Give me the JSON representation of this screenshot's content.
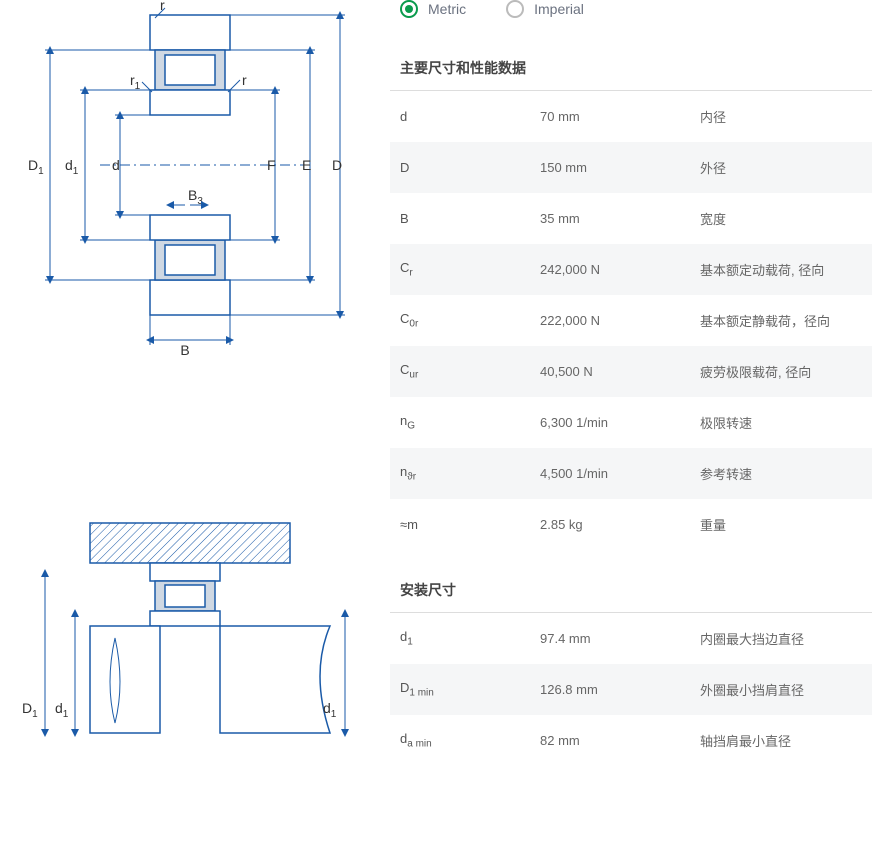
{
  "units": {
    "metric_label": "Metric",
    "imperial_label": "Imperial",
    "selected": "metric"
  },
  "diagram_labels": {
    "top": {
      "D": "D",
      "E": "E",
      "F": "F",
      "D1": "D",
      "D1_sub": "1",
      "d1": "d",
      "d1_sub": "1",
      "d": "d",
      "r_top": "r",
      "r_right": "r",
      "r1": "r",
      "r1_sub": "1",
      "B": "B",
      "B3": "B",
      "B3_sub": "3"
    },
    "bottom": {
      "D1": "D",
      "D1_sub": "1",
      "d1_left": "d",
      "d1_left_sub": "1",
      "d1_right": "d",
      "d1_right_sub": "1"
    }
  },
  "sections": [
    {
      "title": "主要尺寸和性能数据",
      "rows": [
        {
          "sym": "d",
          "sub": "",
          "val": "70 mm",
          "desc": "内径"
        },
        {
          "sym": "D",
          "sub": "",
          "val": "150 mm",
          "desc": "外径"
        },
        {
          "sym": "B",
          "sub": "",
          "val": "35 mm",
          "desc": "宽度"
        },
        {
          "sym": "C",
          "sub": "r",
          "val": "242,000 N",
          "desc": "基本额定动载荷, 径向"
        },
        {
          "sym": "C",
          "sub": "0r",
          "val": "222,000 N",
          "desc": "基本额定静载荷，径向"
        },
        {
          "sym": "C",
          "sub": "ur",
          "val": "40,500 N",
          "desc": "疲劳极限载荷, 径向"
        },
        {
          "sym": "n",
          "sub": "G",
          "val": "6,300 1/min",
          "desc": "极限转速"
        },
        {
          "sym": "n",
          "sub": "ϑr",
          "val": "4,500 1/min",
          "desc": "参考转速"
        },
        {
          "sym": "≈m",
          "sub": "",
          "val": "2.85 kg",
          "desc": "重量"
        }
      ]
    },
    {
      "title": "安装尺寸",
      "rows": [
        {
          "sym": "d",
          "sub": "1",
          "val": "97.4 mm",
          "desc": "内圈最大挡边直径"
        },
        {
          "sym": "D",
          "sub": "1 min",
          "val": "126.8 mm",
          "desc": "外圈最小挡肩直径"
        },
        {
          "sym": "d",
          "sub": "a min",
          "val": "82 mm",
          "desc": "轴挡肩最小直径"
        }
      ]
    }
  ],
  "colors": {
    "line": "#1a5aa8",
    "accent": "#0a9b4d",
    "row_alt": "#f5f6f7",
    "text": "#555"
  }
}
